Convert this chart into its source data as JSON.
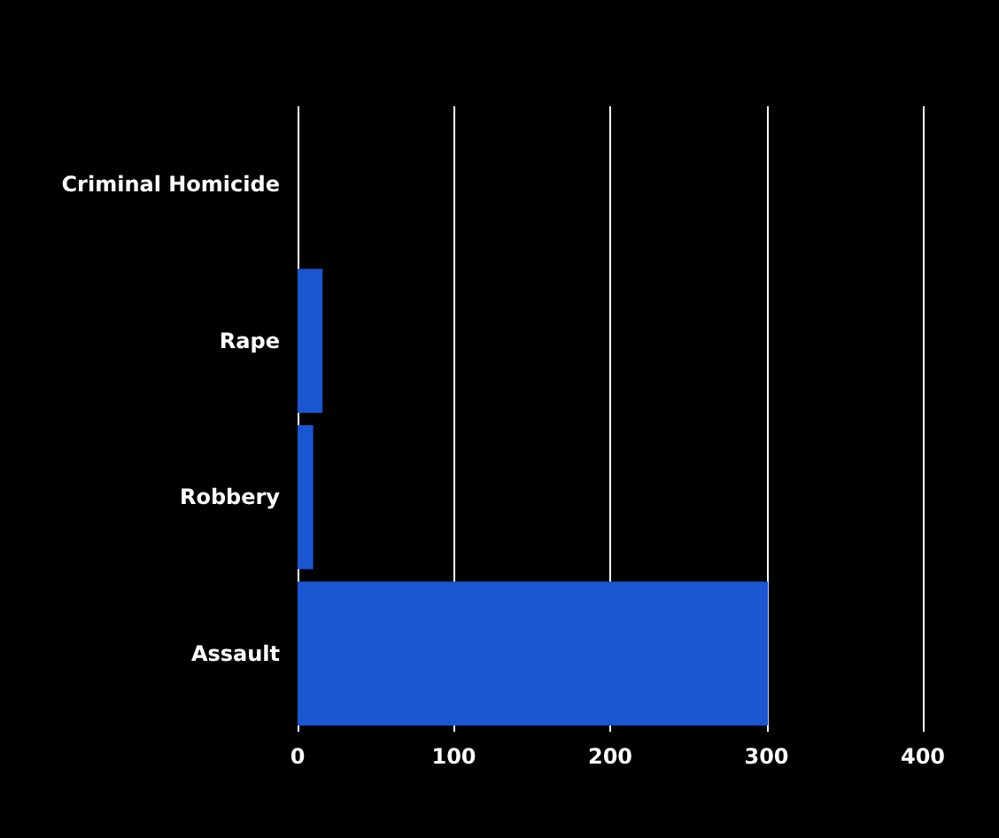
{
  "chart_data": {
    "type": "bar",
    "orientation": "horizontal",
    "categories": [
      "Criminal Homicide",
      "Rape",
      "Robbery",
      "Assault"
    ],
    "values": [
      0,
      16,
      10,
      301
    ],
    "color": "#1a55d2",
    "xlim": [
      0,
      400
    ],
    "xticks": [
      0,
      100,
      200,
      300,
      400
    ],
    "grid": "x"
  }
}
